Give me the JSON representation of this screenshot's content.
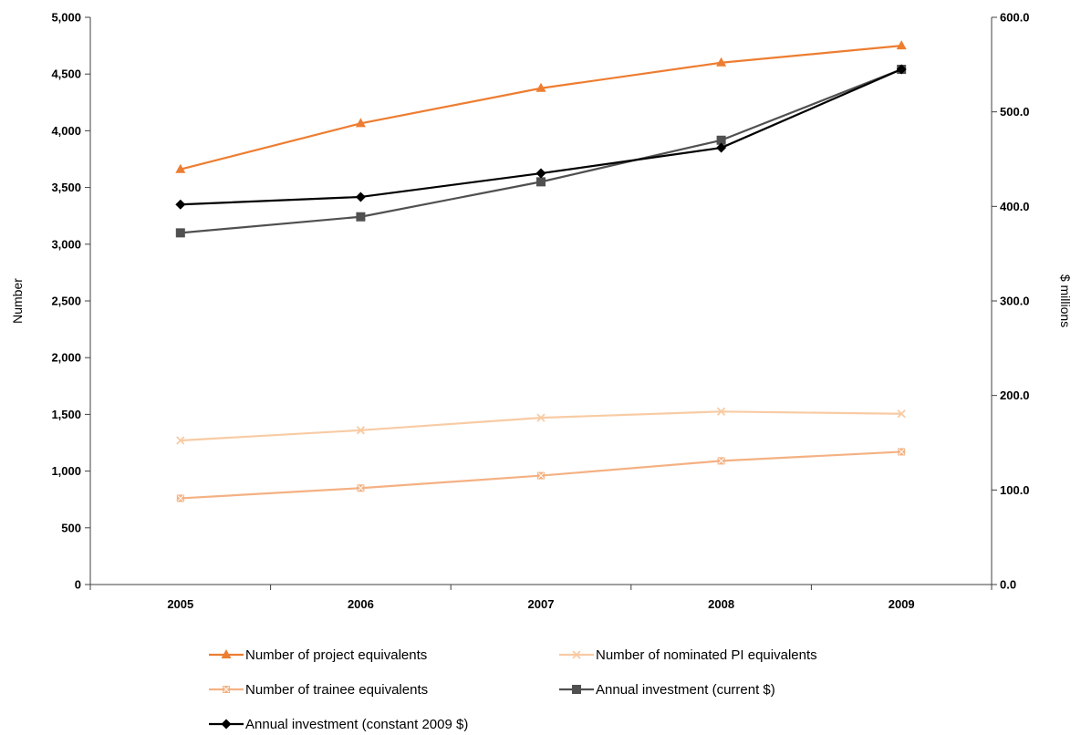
{
  "chart_data": {
    "type": "line",
    "title": "",
    "categories": [
      "2005",
      "2006",
      "2007",
      "2008",
      "2009"
    ],
    "ylabel_left": "Number",
    "ylabel_right": "$ millions",
    "ylim_left": [
      0,
      5000
    ],
    "ylim_right": [
      0,
      600
    ],
    "yticks_left": [
      "0",
      "500",
      "1,000",
      "1,500",
      "2,000",
      "2,500",
      "3,000",
      "3,500",
      "4,000",
      "4,500",
      "5,000"
    ],
    "yticks_right": [
      "0.0",
      "100.0",
      "200.0",
      "300.0",
      "400.0",
      "500.0",
      "600.0"
    ],
    "grid": false,
    "legend_position": "bottom",
    "series": [
      {
        "name": "Number of project equivalents",
        "axis": "left",
        "color": "#ED7D31",
        "marker": "triangle",
        "values": [
          3660,
          4065,
          4375,
          4600,
          4750
        ]
      },
      {
        "name": "Number of nominated PI equivalents",
        "axis": "left",
        "color": "#F8CBA4",
        "marker": "x",
        "values": [
          1270,
          1360,
          1470,
          1525,
          1505
        ]
      },
      {
        "name": "Number of trainee equivalents",
        "axis": "left",
        "color": "#F4B183",
        "marker": "square-x",
        "values": [
          760,
          850,
          960,
          1090,
          1170
        ]
      },
      {
        "name": "Annual investment (current $)",
        "axis": "right",
        "color": "#505050",
        "marker": "square",
        "values": [
          372,
          389,
          426,
          470,
          545
        ]
      },
      {
        "name": "Annual investment (constant 2009 $)",
        "axis": "right",
        "color": "#000000",
        "marker": "diamond",
        "values": [
          402,
          410,
          435,
          462,
          545
        ]
      }
    ]
  }
}
